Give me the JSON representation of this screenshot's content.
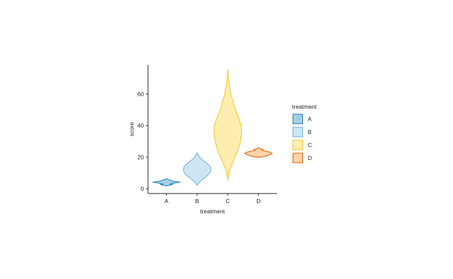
{
  "chart_data": {
    "type": "violin",
    "xlabel": "treatment",
    "ylabel": "score",
    "categories": [
      "A",
      "B",
      "C",
      "D"
    ],
    "ylim": [
      -3,
      78
    ],
    "yticks": [
      0,
      20,
      40,
      60
    ],
    "grid": false,
    "legend": {
      "title": "treatment",
      "placement": "right",
      "entries": [
        "A",
        "B",
        "C",
        "D"
      ]
    },
    "series": [
      {
        "category": "A",
        "fill": "#a6cee3",
        "stroke": "#1f78b4",
        "profile": [
          [
            1.8,
            0.0
          ],
          [
            2.2,
            0.25
          ],
          [
            2.7,
            0.45
          ],
          [
            3.0,
            0.25
          ],
          [
            3.4,
            0.5
          ],
          [
            3.8,
            0.7
          ],
          [
            4.2,
            1.0
          ],
          [
            4.6,
            0.6
          ],
          [
            5.0,
            0.4
          ],
          [
            5.4,
            0.3
          ],
          [
            5.8,
            0.15
          ],
          [
            6.3,
            0.0
          ]
        ]
      },
      {
        "category": "B",
        "fill": "#cde6f5",
        "stroke": "#6baed6",
        "profile": [
          [
            2.0,
            0.0
          ],
          [
            3.0,
            0.06
          ],
          [
            5.0,
            0.25
          ],
          [
            8.0,
            0.7
          ],
          [
            10.0,
            0.92
          ],
          [
            12.0,
            1.0
          ],
          [
            14.0,
            0.95
          ],
          [
            16.0,
            0.72
          ],
          [
            18.0,
            0.42
          ],
          [
            20.0,
            0.18
          ],
          [
            21.5,
            0.08
          ],
          [
            22.8,
            0.0
          ]
        ]
      },
      {
        "category": "C",
        "fill": "#fdedb0",
        "stroke": "#f2c418",
        "profile": [
          [
            5.5,
            0.0
          ],
          [
            8.0,
            0.04
          ],
          [
            12.0,
            0.14
          ],
          [
            18.0,
            0.42
          ],
          [
            24.0,
            0.72
          ],
          [
            30.0,
            0.92
          ],
          [
            35.0,
            1.0
          ],
          [
            40.0,
            0.97
          ],
          [
            45.0,
            0.78
          ],
          [
            50.0,
            0.55
          ],
          [
            55.0,
            0.38
          ],
          [
            60.0,
            0.22
          ],
          [
            65.0,
            0.12
          ],
          [
            70.0,
            0.05
          ],
          [
            75.5,
            0.0
          ]
        ]
      },
      {
        "category": "D",
        "fill": "#fdd3a8",
        "stroke": "#d95f02",
        "profile": [
          [
            19.8,
            0.0
          ],
          [
            20.5,
            0.5
          ],
          [
            21.5,
            0.8
          ],
          [
            22.3,
            1.0
          ],
          [
            23.0,
            0.9
          ],
          [
            23.7,
            0.6
          ],
          [
            24.3,
            0.25
          ],
          [
            24.8,
            0.35
          ],
          [
            25.3,
            0.15
          ],
          [
            26.0,
            0.0
          ]
        ]
      }
    ]
  }
}
